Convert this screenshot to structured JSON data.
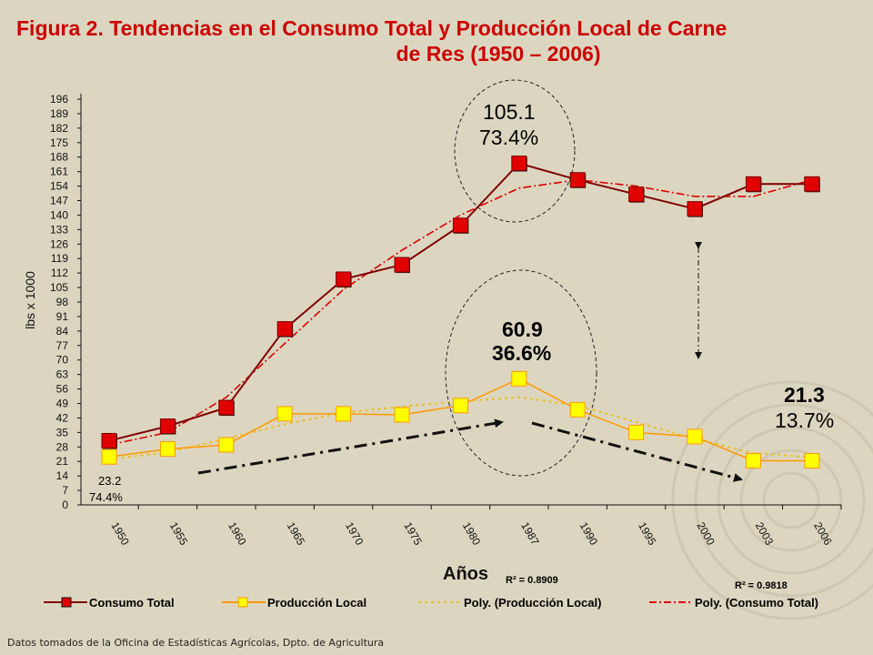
{
  "title_line1": "Figura 2.  Tendencias en el Consumo Total y Producción Local de Carne",
  "title_line2": "de Res (1950 – 2006)",
  "source": "Datos tomados de la Oficina de Estadísticas Agrícolas, Dpto. de Agricultura",
  "colors": {
    "consumo": "#e00000",
    "consumo_line": "#800000",
    "produccion": "#ffff00",
    "produccion_line": "#ff9900",
    "trend_consumo": "#dd0000",
    "trend_produccion": "#e8c020",
    "background": "#dcd6c0"
  },
  "chart_data": {
    "type": "line",
    "xlabel": "Años",
    "ylabel": "lbs x 1000",
    "ylim": [
      0,
      196
    ],
    "yticks": [
      "0",
      "7",
      "14",
      "21",
      "28",
      "35",
      "42",
      "49",
      "56",
      "63",
      "70",
      "77",
      "84",
      "91",
      "98",
      "105",
      "112",
      "119",
      "126",
      "133",
      "140",
      "147",
      "154",
      "161",
      "168",
      "175",
      "182",
      "189",
      "196"
    ],
    "categories": [
      "1950",
      "1955",
      "1960",
      "1965",
      "1970",
      "1975",
      "1980",
      "1987",
      "1990",
      "1995",
      "2000",
      "2003",
      "2006"
    ],
    "series": [
      {
        "name": "Consumo Total",
        "values": [
          31,
          38,
          47,
          85,
          109,
          116,
          135,
          165,
          157,
          150,
          143,
          155,
          155
        ]
      },
      {
        "name": "Producción Local",
        "values": [
          23.2,
          27,
          29,
          44,
          44,
          43.5,
          48,
          60.9,
          46,
          35,
          33,
          21.3,
          21.3
        ]
      },
      {
        "name": "Poly. (Producción Local)",
        "values": [
          22,
          25.5,
          32,
          39,
          44.5,
          47.5,
          50,
          52,
          48,
          40,
          32,
          25,
          23
        ]
      },
      {
        "name": "Poly. (Consumo Total)",
        "values": [
          29,
          35,
          52,
          78,
          104,
          123,
          140,
          153,
          157,
          154,
          149,
          149,
          157
        ]
      }
    ],
    "legend": [
      "Consumo Total",
      "Producción Local",
      "Poly. (Producción Local)",
      "Poly. (Consumo Total)"
    ],
    "legend_position": "bottom",
    "annotations": {
      "start_value": "23.2",
      "start_pct": "74.4%",
      "peak_cons_value": "105.1",
      "peak_cons_pct": "73.4%",
      "peak_prod_value": "60.9",
      "peak_prod_pct": "36.6%",
      "end_value": "21.3",
      "end_pct": "13.7%",
      "r2_prod": "R² = 0.8909",
      "r2_cons": "R² = 0.9818"
    }
  }
}
